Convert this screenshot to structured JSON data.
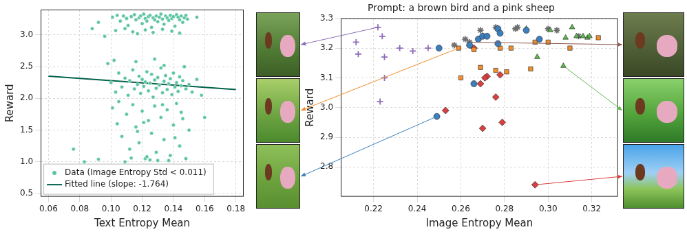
{
  "chart_data": [
    {
      "type": "scatter",
      "x_label": "Text Entropy Mean",
      "y_label": "Reward",
      "xlim": [
        0.055,
        0.185
      ],
      "xticks": [
        0.06,
        0.08,
        {
          "value": 0.1,
          "label": "0.10"
        },
        0.12,
        0.14,
        0.16,
        0.18
      ],
      "ylim": [
        0.45,
        3.4
      ],
      "yticks": [
        0.5,
        {
          "value": 1,
          "label": "1.0"
        },
        1.5,
        {
          "value": 2,
          "label": "2.0"
        },
        2.5,
        {
          "value": 3,
          "label": "3.0"
        }
      ],
      "grid": true,
      "legend": "lower left",
      "series": [
        {
          "name": "Data (Image Entropy Std < 0.011)",
          "type": "scatter",
          "marker": "circle",
          "color": "#5cc4a0",
          "x": [
            0.101,
            0.104,
            0.106,
            0.108,
            0.11,
            0.111,
            0.113,
            0.115,
            0.116,
            0.118,
            0.119,
            0.12,
            0.121,
            0.122,
            0.123,
            0.124,
            0.125,
            0.126,
            0.127,
            0.128,
            0.129,
            0.13,
            0.131,
            0.132,
            0.133,
            0.134,
            0.135,
            0.136,
            0.137,
            0.138,
            0.139,
            0.14,
            0.141,
            0.142,
            0.143,
            0.144,
            0.145,
            0.146,
            0.147,
            0.148,
            0.103,
            0.109,
            0.114,
            0.117,
            0.122,
            0.127,
            0.133,
            0.139,
            0.144,
            0.149,
            0.088,
            0.092,
            0.155,
            0.096,
            0.1,
            0.103,
            0.105,
            0.107,
            0.109,
            0.111,
            0.112,
            0.114,
            0.115,
            0.117,
            0.118,
            0.119,
            0.12,
            0.121,
            0.122,
            0.123,
            0.124,
            0.125,
            0.126,
            0.127,
            0.128,
            0.129,
            0.13,
            0.131,
            0.132,
            0.133,
            0.134,
            0.135,
            0.136,
            0.137,
            0.138,
            0.139,
            0.14,
            0.141,
            0.142,
            0.143,
            0.144,
            0.145,
            0.146,
            0.148,
            0.15,
            0.152,
            0.155,
            0.158,
            0.098,
            0.102,
            0.116,
            0.128,
            0.134,
            0.147,
            0.101,
            0.104,
            0.107,
            0.11,
            0.112,
            0.114,
            0.116,
            0.118,
            0.12,
            0.122,
            0.124,
            0.126,
            0.128,
            0.13,
            0.132,
            0.134,
            0.136,
            0.138,
            0.14,
            0.142,
            0.144,
            0.146,
            0.148,
            0.15,
            0.105,
            0.113,
            0.121,
            0.129,
            0.137,
            0.145,
            0.109,
            0.117,
            0.125,
            0.133,
            0.141,
            0.076,
            0.083,
            0.092,
            0.16,
            0.123
          ],
          "values": [
            3.28,
            3.31,
            3.22,
            3.3,
            3.26,
            3.15,
            3.29,
            3.32,
            3.24,
            3.27,
            3.3,
            3.18,
            3.33,
            3.26,
            3.22,
            3.29,
            3.31,
            3.12,
            3.27,
            3.24,
            3.3,
            3.21,
            3.28,
            3.33,
            3.25,
            3.17,
            3.3,
            3.27,
            3.23,
            3.31,
            3.26,
            3.29,
            3.14,
            3.32,
            3.28,
            3.24,
            3.3,
            3.2,
            3.27,
            3.31,
            3.07,
            3.1,
            3.05,
            3.02,
            3.08,
            3.04,
            3.09,
            3.06,
            3.03,
            3.25,
            3.1,
            3.2,
            3.28,
            2.98,
            2.25,
            2.1,
            2.4,
            2.18,
            2.32,
            2.05,
            2.28,
            2.45,
            2.15,
            2.22,
            2.35,
            2.08,
            2.3,
            2.19,
            2.26,
            2.42,
            2.12,
            2.24,
            2.38,
            2.02,
            2.29,
            2.16,
            2.33,
            2.21,
            2.48,
            2.09,
            2.27,
            2.36,
            2.14,
            2.23,
            2.31,
            2.06,
            2.4,
            2.18,
            2.25,
            2.11,
            2.34,
            2.2,
            2.28,
            2.15,
            2.22,
            2.1,
            2.3,
            2.05,
            2.55,
            2.6,
            2.58,
            2.62,
            2.52,
            2.5,
            1.85,
            1.6,
            1.4,
            1.75,
            1.2,
            1.9,
            1.55,
            1.3,
            1.8,
            1.05,
            1.65,
            1.45,
            1.88,
            1.02,
            1.7,
            1.35,
            1.82,
            1.1,
            1.58,
            1.92,
            1.25,
            1.68,
            1.05,
            1.5,
            1.95,
            1.06,
            1.62,
            1.15,
            1.02,
            1.78,
            1.0,
            1.48,
            1.03,
            1.9,
            1.38,
            1.2,
            1.0,
            1.04,
            1.7,
            1.08
          ]
        },
        {
          "name": "Fitted line (slope: -1.764)",
          "type": "line",
          "line_style": "solid",
          "color": "#00614a",
          "x": [
            0.06,
            0.18
          ],
          "values": [
            2.35,
            2.138
          ]
        }
      ]
    },
    {
      "type": "scatter",
      "title": "Prompt: a brown bird and a pink sheep",
      "x_label": "Image Entropy Mean",
      "y_label": "Reward",
      "xlim": [
        0.205,
        0.332
      ],
      "xticks": [
        0.22,
        0.24,
        0.26,
        0.28,
        {
          "value": 0.3,
          "label": "0.30"
        },
        0.32
      ],
      "ylim": [
        2.7,
        3.3
      ],
      "yticks": [
        2.8,
        2.9,
        {
          "value": 3,
          "label": "3.0"
        },
        3.1,
        3.2,
        3.3
      ],
      "grid": true,
      "series": [
        {
          "marker": "plus",
          "color": "#8c6bb8",
          "x": [
            0.222,
            0.224,
            0.212,
            0.213,
            0.225,
            0.238,
            0.232,
            0.245,
            0.225,
            0.223
          ],
          "values": [
            3.27,
            3.24,
            3.22,
            3.18,
            3.17,
            3.19,
            3.2,
            3.2,
            3.1,
            3.02
          ]
        },
        {
          "marker": "circle",
          "color": "#3b7fbf",
          "x": [
            0.25,
            0.264,
            0.268,
            0.27,
            0.272,
            0.277,
            0.278,
            0.277,
            0.29,
            0.296,
            0.266,
            0.249
          ],
          "values": [
            3.2,
            3.21,
            3.23,
            3.24,
            3.24,
            3.265,
            3.25,
            3.215,
            3.26,
            3.23,
            3.08,
            2.97
          ]
        },
        {
          "marker": "square",
          "color": "#f28e2b",
          "x": [
            0.259,
            0.266,
            0.278,
            0.283,
            0.294,
            0.3,
            0.31,
            0.323,
            0.26,
            0.269,
            0.276,
            0.281,
            0.292
          ],
          "values": [
            3.2,
            3.195,
            3.2,
            3.2,
            3.22,
            3.22,
            3.2,
            3.235,
            3.1,
            3.135,
            3.125,
            3.12,
            3.13
          ]
        },
        {
          "marker": "triangle",
          "color": "#5cb84a",
          "x": [
            0.29,
            0.301,
            0.311,
            0.313,
            0.316,
            0.318,
            0.319,
            0.308,
            0.295,
            0.307
          ],
          "values": [
            3.265,
            3.26,
            3.27,
            3.24,
            3.24,
            3.235,
            3.24,
            3.235,
            3.17,
            3.14
          ]
        },
        {
          "marker": "star",
          "color": "#6e6e6e",
          "x": [
            0.257,
            0.264,
            0.269,
            0.276,
            0.285,
            0.286,
            0.3,
            0.304,
            0.314,
            0.262
          ],
          "values": [
            3.21,
            3.22,
            3.26,
            3.27,
            3.265,
            3.27,
            3.265,
            3.26,
            3.24,
            3.23
          ]
        },
        {
          "marker": "diamond",
          "color": "#d8403f",
          "x": [
            0.266,
            0.272,
            0.271,
            0.269,
            0.278,
            0.276,
            0.279,
            0.27,
            0.253,
            0.294
          ],
          "values": [
            3.2,
            3.105,
            3.1,
            3.08,
            3.11,
            3.035,
            2.95,
            2.93,
            2.99,
            2.74
          ]
        }
      ]
    }
  ]
}
